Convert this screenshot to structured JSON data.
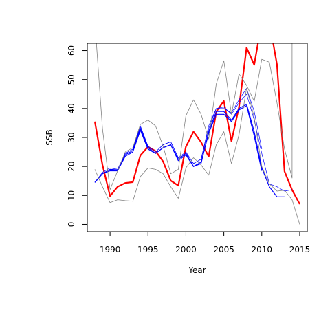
{
  "chart_data": {
    "type": "line",
    "title": "",
    "xlabel": "Year",
    "ylabel": "SSB",
    "xlim": [
      1987,
      2016
    ],
    "ylim": [
      -2.5,
      62.5
    ],
    "x_ticks": [
      1990,
      1995,
      2000,
      2005,
      2010,
      2015
    ],
    "y_ticks": [
      0,
      10,
      20,
      30,
      40,
      50,
      60
    ],
    "grid": false,
    "legend": "none",
    "colors": {
      "red": "#ff0000",
      "blue": "#0000ff",
      "gray": "#808080"
    },
    "series": [
      {
        "color": "#ff0000",
        "width": 2.2,
        "x": [
          1988,
          1989,
          1990,
          1991,
          1992,
          1993,
          1994,
          1995,
          1996,
          1997,
          1998,
          1999,
          2000,
          2001,
          2002,
          2003,
          2004,
          2005,
          2006,
          2007,
          2008,
          2009,
          2010,
          2011,
          2012,
          2013,
          2014,
          2015
        ],
        "y": [
          35.5,
          20.5,
          9.8,
          13,
          14.3,
          14.6,
          23.8,
          26.8,
          25.3,
          21.7,
          15.1,
          13.4,
          26.8,
          32,
          28.4,
          23.4,
          38.9,
          42.6,
          28.7,
          40.5,
          61,
          55.1,
          70,
          70,
          55.2,
          18.3,
          11.9,
          7
        ]
      },
      {
        "color": "#0000ff",
        "width": 1.2,
        "x": [
          1988,
          1989,
          1990,
          1991,
          1992,
          1993,
          1994,
          1995,
          1996,
          1997,
          1998,
          1999,
          2000,
          2001,
          2002,
          2003,
          2004,
          2005,
          2006,
          2007,
          2008,
          2009,
          2010
        ],
        "y": [
          14.5,
          17.5,
          19,
          18.5,
          23.5,
          25,
          32.5,
          26,
          24.5,
          26.5,
          27.5,
          22,
          24,
          20,
          21.5,
          31.5,
          38,
          38,
          35.5,
          39.5,
          41,
          30.5,
          18.5
        ]
      },
      {
        "color": "#0000ff",
        "width": 1.2,
        "x": [
          1988,
          1989,
          1990,
          1991,
          1992,
          1993,
          1994,
          1995,
          1996,
          1997,
          1998,
          1999,
          2000,
          2001,
          2002,
          2003,
          2004,
          2005,
          2006,
          2007,
          2008,
          2009,
          2010,
          2011,
          2012,
          2013
        ],
        "y": [
          14.5,
          17.5,
          18.5,
          18.5,
          24,
          25.5,
          33,
          26.5,
          24.5,
          26.5,
          27.5,
          22.5,
          24.5,
          20,
          21,
          32,
          39,
          39,
          36,
          40,
          41.5,
          32,
          19.5,
          13,
          9.5,
          9.5
        ]
      },
      {
        "color": "#0000ff",
        "width": 0.7,
        "x": [
          1988,
          1989,
          1990,
          1991,
          1992,
          1993,
          1994,
          1995,
          1996,
          1997,
          1998,
          1999,
          2000,
          2001,
          2002,
          2003,
          2004,
          2005,
          2006,
          2007,
          2008,
          2009,
          2010,
          2011,
          2012,
          2013,
          2014
        ],
        "y": [
          14.5,
          18,
          19.5,
          19,
          24.5,
          26,
          34,
          27,
          25,
          27.5,
          28.5,
          23,
          25,
          21,
          22.5,
          33,
          40,
          40.5,
          38,
          42,
          45,
          36,
          24.5,
          14,
          13,
          11.5,
          12
        ]
      },
      {
        "color": "#0000ff",
        "width": 0.7,
        "x": [
          1988,
          1989,
          1990,
          1991,
          1992,
          1993,
          1994,
          1995,
          1996,
          1997,
          1998,
          1999,
          2000,
          2001,
          2002,
          2003,
          2004,
          2005,
          2006,
          2007,
          2008,
          2009,
          2010
        ],
        "y": [
          14.5,
          17.5,
          19,
          19,
          24.5,
          26,
          33.5,
          27,
          25,
          27.5,
          28.5,
          23,
          25,
          21,
          22.5,
          34,
          40,
          40,
          38.5,
          43,
          47,
          39,
          26
        ]
      },
      {
        "color": "#808080",
        "width": 0.8,
        "x": [
          1988,
          1989,
          1990,
          1991,
          1992,
          1993,
          1994,
          1995,
          1996,
          1997,
          1998,
          1999,
          2000,
          2001,
          2002,
          2003,
          2004,
          2005,
          2006,
          2007,
          2008,
          2009,
          2010,
          2011,
          2012,
          2013,
          2014,
          2014
        ],
        "y": [
          70,
          33,
          12,
          18.5,
          25,
          26.5,
          34.5,
          36,
          34,
          27,
          17.5,
          19,
          37.5,
          43,
          38,
          29.5,
          48.5,
          56.5,
          38,
          52,
          48,
          42.5,
          57,
          56,
          42,
          26,
          16,
          70
        ]
      },
      {
        "color": "#808080",
        "width": 0.8,
        "x": [
          1988,
          1989,
          1990,
          1991,
          1992,
          1993,
          1994,
          1995,
          1996,
          1997,
          1998,
          1999,
          2000,
          2001,
          2002,
          2003,
          2004,
          2005,
          2006,
          2007,
          2008,
          2009,
          2010,
          2011,
          2012,
          2013,
          2014,
          2015
        ],
        "y": [
          19,
          13,
          7.5,
          8.5,
          8.2,
          8,
          16.5,
          19.5,
          19,
          17.5,
          13,
          9,
          19.5,
          23,
          20.5,
          17,
          27.5,
          32,
          21,
          31,
          47,
          37,
          20,
          14,
          11.5,
          11.8,
          8.5,
          0
        ]
      }
    ]
  }
}
